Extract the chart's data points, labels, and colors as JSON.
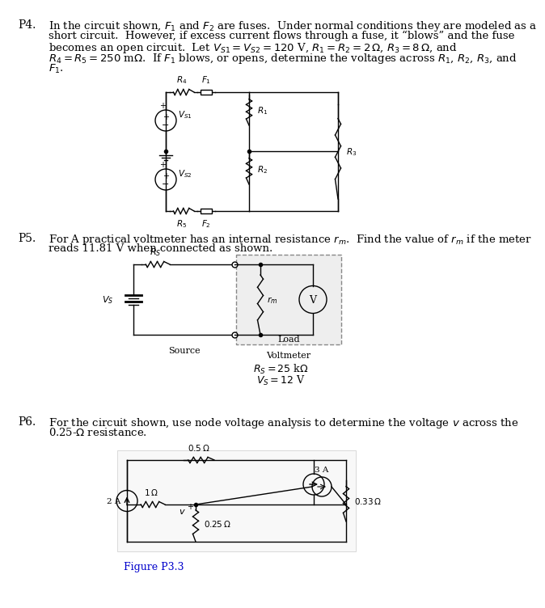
{
  "bg_color": "#ffffff",
  "text_color": "#000000",
  "blue_color": "#0000cc",
  "font_size_label": 10,
  "font_size_text": 9.5,
  "p4_label": "P4.",
  "p4_line1": "In the circuit shown, $F_1$ and $F_2$ are fuses.  Under normal conditions they are modeled as a",
  "p4_line2": "short circuit.  However, if excess current flows through a fuse, it “blows” and the fuse",
  "p4_line3": "becomes an open circuit.  Let $V_{S1} = V_{S2} = 120$ V, $R_1 = R_2 = 2\\,\\Omega$, $R_3 = 8\\,\\Omega$, and",
  "p4_line4": "$R_4 = R_5 = 250$ m$\\Omega$.  If $F_1$ blows, or opens, determine the voltages across $R_1$, $R_2$, $R_3$, and",
  "p4_line5": "$F_1$.",
  "p5_label": "P5.",
  "p5_line1": "For A practical voltmeter has an internal resistance $r_m$.  Find the value of $r_m$ if the meter",
  "p5_line2": "reads 11.81 V when connected as shown.",
  "p5_rs": "$R_S = 25$ k$\\Omega$",
  "p5_vs": "$V_S = 12$ V",
  "p5_source": "Source",
  "p5_load": "Load",
  "p5_voltmeter": "Voltmeter",
  "p6_label": "P6.",
  "p6_line1": "For the circuit shown, use node voltage analysis to determine the voltage $v$ across the",
  "p6_line2": "0.25-$\\Omega$ resistance.",
  "p6_fig": "Figure P3.3"
}
